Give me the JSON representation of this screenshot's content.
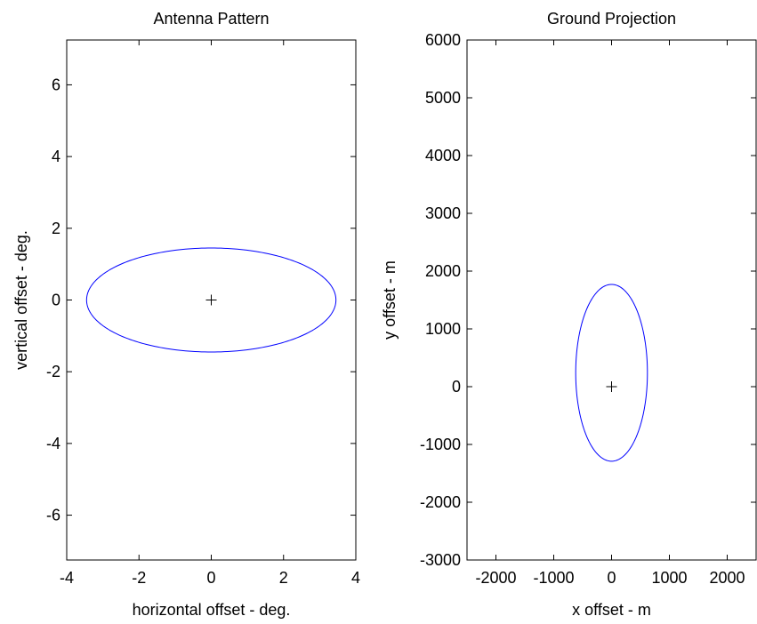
{
  "chart_data": [
    {
      "type": "line",
      "title": "Antenna Pattern",
      "xlabel": "horizontal offset - deg.",
      "ylabel": "vertical offset - deg.",
      "xlim": [
        -4,
        4
      ],
      "ylim": [
        -7.25,
        7.25
      ],
      "xticks": [
        -4,
        -2,
        0,
        2,
        4
      ],
      "yticks": [
        -6,
        -4,
        -2,
        0,
        2,
        4,
        6
      ],
      "grid": false,
      "series": [
        {
          "kind": "ellipse",
          "center": [
            0,
            0
          ],
          "semi_x": 3.45,
          "semi_y": 1.45,
          "color": "#0000ff"
        }
      ],
      "marker": {
        "symbol": "+",
        "x": 0,
        "y": 0,
        "color": "#000000"
      }
    },
    {
      "type": "line",
      "title": "Ground Projection",
      "xlabel": "x offset - m",
      "ylabel": "y offset - m",
      "xlim": [
        -2500,
        2500
      ],
      "ylim": [
        -3000,
        6000
      ],
      "xticks": [
        -2000,
        -1000,
        0,
        1000,
        2000
      ],
      "yticks": [
        -3000,
        -2000,
        -1000,
        0,
        1000,
        2000,
        3000,
        4000,
        5000,
        6000
      ],
      "grid": false,
      "series": [
        {
          "kind": "ellipse",
          "center": [
            0,
            240
          ],
          "semi_x": 620,
          "semi_y": 1530,
          "color": "#0000ff"
        }
      ],
      "marker": {
        "symbol": "+",
        "x": 0,
        "y": 0,
        "color": "#000000"
      }
    }
  ]
}
